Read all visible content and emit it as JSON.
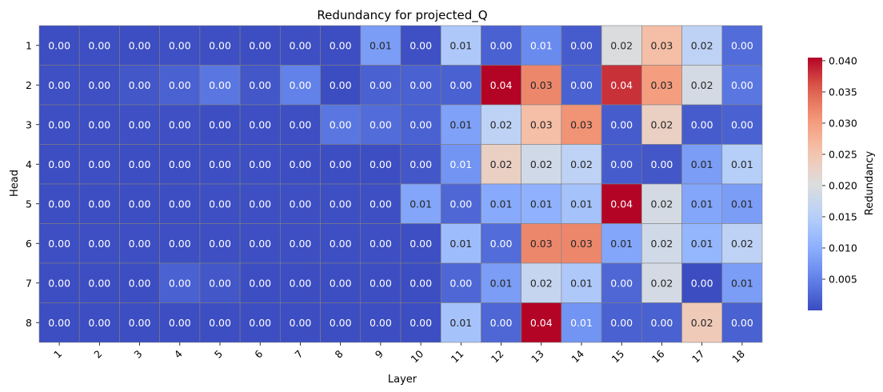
{
  "chart_data": {
    "type": "heatmap",
    "title": "Redundancy for projected_Q",
    "xlabel": "Layer",
    "ylabel": "Head",
    "x_categories": [
      "1",
      "2",
      "3",
      "4",
      "5",
      "6",
      "7",
      "8",
      "9",
      "10",
      "11",
      "12",
      "13",
      "14",
      "15",
      "16",
      "17",
      "18"
    ],
    "y_categories": [
      "1",
      "2",
      "3",
      "4",
      "5",
      "6",
      "7",
      "8"
    ],
    "values": [
      [
        0.0002,
        0.0003,
        0.0002,
        0.0004,
        0.0003,
        0.0002,
        0.0003,
        0.0002,
        0.008,
        0.0004,
        0.014,
        0.002,
        0.006,
        0.0015,
        0.02,
        0.026,
        0.016,
        0.003
      ],
      [
        0.0004,
        0.0004,
        0.001,
        0.002,
        0.004,
        0.001,
        0.005,
        0.0001,
        0.002,
        0.002,
        0.002,
        0.0405,
        0.032,
        0.002,
        0.038,
        0.03,
        0.019,
        0.004
      ],
      [
        0.0003,
        0.0003,
        0.0004,
        0.0004,
        0.0002,
        0.0003,
        0.0003,
        0.004,
        0.003,
        0.002,
        0.0085,
        0.016,
        0.026,
        0.031,
        0.0015,
        0.023,
        0.0015,
        0.002
      ],
      [
        0.0002,
        0.0003,
        0.0002,
        0.0002,
        0.0003,
        0.0003,
        0.0002,
        0.0002,
        0.0002,
        0.001,
        0.007,
        0.023,
        0.0185,
        0.016,
        0.0015,
        0.001,
        0.008,
        0.015
      ],
      [
        0.0002,
        0.0002,
        0.0002,
        0.0002,
        0.0003,
        0.0003,
        0.0003,
        0.0003,
        0.0003,
        0.009,
        0.0025,
        0.0095,
        0.0105,
        0.013,
        0.0405,
        0.019,
        0.009,
        0.008
      ],
      [
        0.0003,
        0.0003,
        0.0003,
        0.0003,
        0.0003,
        0.0003,
        0.0003,
        0.0003,
        0.0003,
        0.0003,
        0.012,
        0.003,
        0.032,
        0.032,
        0.009,
        0.0185,
        0.011,
        0.016
      ],
      [
        0.0002,
        0.0002,
        0.0002,
        0.002,
        0.001,
        0.0002,
        0.0002,
        0.0002,
        0.0002,
        0.0002,
        0.0025,
        0.008,
        0.017,
        0.014,
        0.0025,
        0.019,
        0.0001,
        0.008
      ],
      [
        0.0002,
        0.0002,
        0.0002,
        0.0002,
        0.0002,
        0.0002,
        0.0002,
        0.0002,
        0.0002,
        0.0002,
        0.013,
        0.0025,
        0.0405,
        0.007,
        0.002,
        0.002,
        0.024,
        0.002
      ]
    ],
    "labels": [
      [
        "0.00",
        "0.00",
        "0.00",
        "0.00",
        "0.00",
        "0.00",
        "0.00",
        "0.00",
        "0.01",
        "0.00",
        "0.01",
        "0.00",
        "0.01",
        "0.00",
        "0.02",
        "0.03",
        "0.02",
        "0.00"
      ],
      [
        "0.00",
        "0.00",
        "0.00",
        "0.00",
        "0.00",
        "0.00",
        "0.00",
        "0.00",
        "0.00",
        "0.00",
        "0.00",
        "0.04",
        "0.03",
        "0.00",
        "0.04",
        "0.03",
        "0.02",
        "0.00"
      ],
      [
        "0.00",
        "0.00",
        "0.00",
        "0.00",
        "0.00",
        "0.00",
        "0.00",
        "0.00",
        "0.00",
        "0.00",
        "0.01",
        "0.02",
        "0.03",
        "0.03",
        "0.00",
        "0.02",
        "0.00",
        "0.00"
      ],
      [
        "0.00",
        "0.00",
        "0.00",
        "0.00",
        "0.00",
        "0.00",
        "0.00",
        "0.00",
        "0.00",
        "0.00",
        "0.01",
        "0.02",
        "0.02",
        "0.02",
        "0.00",
        "0.00",
        "0.01",
        "0.01"
      ],
      [
        "0.00",
        "0.00",
        "0.00",
        "0.00",
        "0.00",
        "0.00",
        "0.00",
        "0.00",
        "0.00",
        "0.01",
        "0.00",
        "0.01",
        "0.01",
        "0.01",
        "0.04",
        "0.02",
        "0.01",
        "0.01"
      ],
      [
        "0.00",
        "0.00",
        "0.00",
        "0.00",
        "0.00",
        "0.00",
        "0.00",
        "0.00",
        "0.00",
        "0.00",
        "0.01",
        "0.00",
        "0.03",
        "0.03",
        "0.01",
        "0.02",
        "0.01",
        "0.02"
      ],
      [
        "0.00",
        "0.00",
        "0.00",
        "0.00",
        "0.00",
        "0.00",
        "0.00",
        "0.00",
        "0.00",
        "0.00",
        "0.00",
        "0.01",
        "0.02",
        "0.01",
        "0.00",
        "0.02",
        "0.00",
        "0.01"
      ],
      [
        "0.00",
        "0.00",
        "0.00",
        "0.00",
        "0.00",
        "0.00",
        "0.00",
        "0.00",
        "0.00",
        "0.00",
        "0.01",
        "0.00",
        "0.04",
        "0.01",
        "0.00",
        "0.00",
        "0.02",
        "0.00"
      ]
    ],
    "colorbar": {
      "label": "Redundancy",
      "colormap": "coolwarm",
      "vmin": 0.0,
      "vmax": 0.0405,
      "ticks": [
        "0.005",
        "0.010",
        "0.015",
        "0.020",
        "0.025",
        "0.030",
        "0.035",
        "0.040"
      ]
    },
    "grid_line_color": "#808080"
  }
}
